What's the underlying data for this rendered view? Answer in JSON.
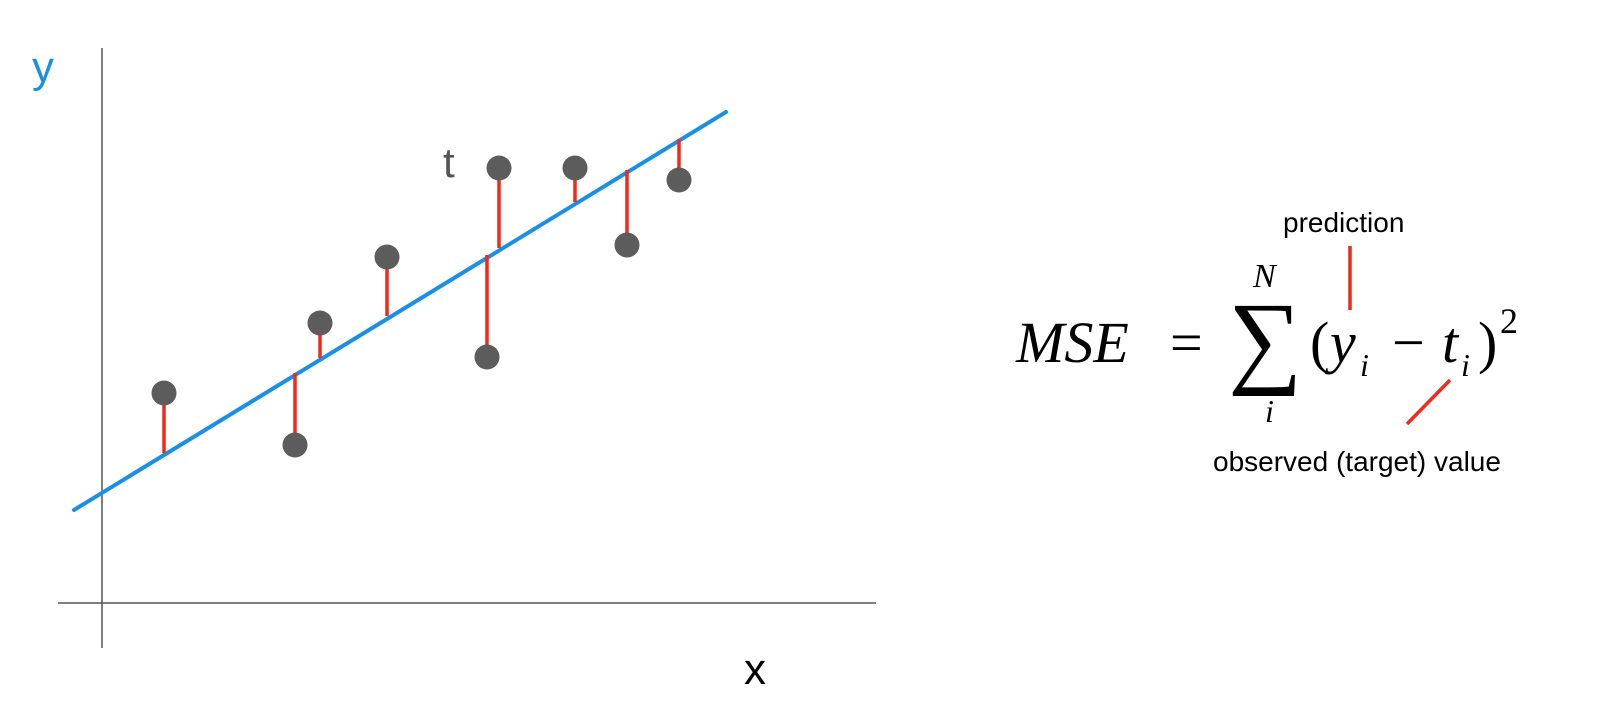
{
  "diagram": {
    "axis_labels": {
      "y": "y",
      "x": "x"
    },
    "target_label": "t",
    "colors": {
      "axis": "#555555",
      "regression_line": "#1a8fe8",
      "residual": "#ee2a1a",
      "point": "#5c5c5c",
      "y_label": "#1a8fe8",
      "text": "#000000"
    }
  },
  "formula": {
    "lhs": "MSE",
    "equals": "=",
    "sum_symbol": "∑",
    "upper_limit": "N",
    "lower_limit": "i",
    "open_paren": "(",
    "y_var": "y",
    "y_sub": "i",
    "minus": "−",
    "t_var": "t",
    "t_sub": "i",
    "close_paren": ")",
    "exponent": "2",
    "annotation_prediction": "prediction",
    "annotation_observed": "observed (target) value"
  }
}
